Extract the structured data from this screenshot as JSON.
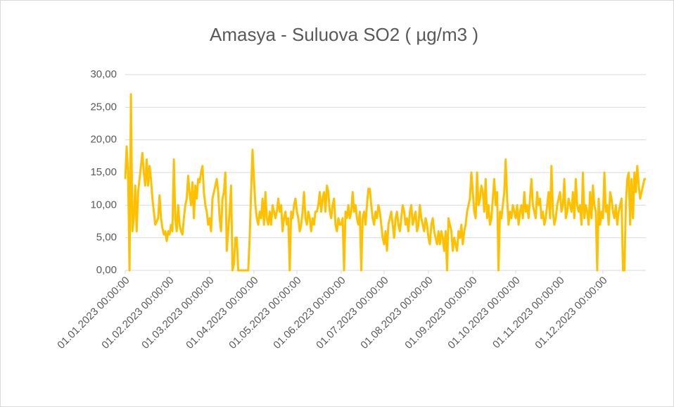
{
  "chart_data": {
    "type": "line",
    "title": "Amasya - Suluova SO2 ( µg/m3 )",
    "categories": [
      "01.01.2023 00:00:00",
      null,
      null,
      null,
      null,
      null,
      null,
      null,
      null,
      null,
      null,
      null,
      null,
      null,
      null,
      null,
      null,
      null,
      null,
      null,
      null,
      null,
      null,
      null,
      null,
      null,
      null,
      null,
      null,
      null,
      null,
      "01.02.2023 00:00:00",
      null,
      null,
      null,
      null,
      null,
      null,
      null,
      null,
      null,
      null,
      null,
      null,
      null,
      null,
      null,
      null,
      null,
      null,
      null,
      null,
      null,
      null,
      null,
      null,
      null,
      null,
      null,
      "01.03.2023 00:00:00",
      null,
      null,
      null,
      null,
      null,
      null,
      null,
      null,
      null,
      null,
      null,
      null,
      null,
      null,
      null,
      null,
      null,
      null,
      null,
      null,
      null,
      null,
      null,
      null,
      null,
      null,
      null,
      null,
      null,
      null,
      "01.04.2023 00:00:00",
      null,
      null,
      null,
      null,
      null,
      null,
      null,
      null,
      null,
      null,
      null,
      null,
      null,
      null,
      null,
      null,
      null,
      null,
      null,
      null,
      null,
      null,
      null,
      null,
      null,
      null,
      null,
      null,
      null,
      "01.05.2023 00:00:00",
      null,
      null,
      null,
      null,
      null,
      null,
      null,
      null,
      null,
      null,
      null,
      null,
      null,
      null,
      null,
      null,
      null,
      null,
      null,
      null,
      null,
      null,
      null,
      null,
      null,
      null,
      null,
      null,
      null,
      null,
      "01.06.2023 00:00:00",
      null,
      null,
      null,
      null,
      null,
      null,
      null,
      null,
      null,
      null,
      null,
      null,
      null,
      null,
      null,
      null,
      null,
      null,
      null,
      null,
      null,
      null,
      null,
      null,
      null,
      null,
      null,
      null,
      null,
      "01.07.2023 00:00:00",
      null,
      null,
      null,
      null,
      null,
      null,
      null,
      null,
      null,
      null,
      null,
      null,
      null,
      null,
      null,
      null,
      null,
      null,
      null,
      null,
      null,
      null,
      null,
      null,
      null,
      null,
      null,
      null,
      null,
      null,
      "01.08.2023 00:00:00",
      null,
      null,
      null,
      null,
      null,
      null,
      null,
      null,
      null,
      null,
      null,
      null,
      null,
      null,
      null,
      null,
      null,
      null,
      null,
      null,
      null,
      null,
      null,
      null,
      null,
      null,
      null,
      null,
      null,
      null,
      "01.09.2023 00:00:00",
      null,
      null,
      null,
      null,
      null,
      null,
      null,
      null,
      null,
      null,
      null,
      null,
      null,
      null,
      null,
      null,
      null,
      null,
      null,
      null,
      null,
      null,
      null,
      null,
      null,
      null,
      null,
      null,
      null,
      "01.10.2023 00:00:00",
      null,
      null,
      null,
      null,
      null,
      null,
      null,
      null,
      null,
      null,
      null,
      null,
      null,
      null,
      null,
      null,
      null,
      null,
      null,
      null,
      null,
      null,
      null,
      null,
      null,
      null,
      null,
      null,
      null,
      null,
      "01.11.2023 00:00:00",
      null,
      null,
      null,
      null,
      null,
      null,
      null,
      null,
      null,
      null,
      null,
      null,
      null,
      null,
      null,
      null,
      null,
      null,
      null,
      null,
      null,
      null,
      null,
      null,
      null,
      null,
      null,
      null,
      null,
      "01.12.2023 00:00:00",
      null,
      null,
      null,
      null,
      null,
      null,
      null,
      null,
      null,
      null,
      null,
      null,
      null,
      null,
      null,
      null,
      null,
      null,
      null,
      null,
      null,
      null,
      null,
      null,
      null,
      null,
      null,
      null,
      null,
      null
    ],
    "values": [
      14,
      19,
      15,
      0,
      27,
      6,
      8,
      13,
      6,
      12,
      14,
      16,
      18,
      15,
      13,
      17,
      13,
      16,
      14,
      11,
      9,
      7,
      7.5,
      8,
      11.5,
      8,
      6.5,
      5.5,
      6,
      4.5,
      6,
      5.5,
      7,
      6,
      17,
      8,
      6,
      10,
      7,
      6,
      5.5,
      8,
      10,
      11,
      14.5,
      12,
      10,
      13.5,
      8,
      13,
      11,
      14,
      13.5,
      15,
      16,
      12,
      10,
      9,
      7,
      8,
      6,
      11,
      12,
      13,
      14,
      12,
      8,
      6,
      11,
      12,
      15,
      3,
      6,
      9,
      13,
      0,
      1,
      5,
      5,
      0,
      0,
      0,
      0,
      0,
      0,
      0,
      0,
      5,
      12,
      18.5,
      14,
      10,
      8,
      7,
      9,
      8,
      11,
      7,
      12,
      8,
      7,
      9,
      7,
      10,
      9,
      8,
      9,
      11,
      9,
      10,
      6,
      8,
      9,
      7,
      8,
      0,
      9,
      8,
      10,
      11,
      9,
      8,
      6,
      7,
      9,
      12,
      8,
      7,
      9,
      8,
      6,
      8,
      7,
      9,
      9,
      10,
      12,
      9,
      11,
      12,
      9,
      13,
      12,
      9,
      8,
      10,
      11,
      7,
      6,
      8,
      7,
      7,
      8,
      0,
      9,
      8,
      10,
      8,
      9,
      12,
      9,
      10,
      8,
      7,
      9,
      0,
      8,
      9,
      7,
      10,
      12.5,
      12.5,
      10,
      8,
      7,
      9,
      8,
      10,
      9,
      7,
      5,
      4,
      6,
      3,
      7,
      8,
      9,
      7,
      5,
      8,
      9,
      7,
      6,
      8,
      10,
      9,
      7,
      8,
      6,
      9,
      10,
      7,
      8,
      9,
      6,
      7,
      10,
      8,
      7,
      6,
      8,
      7,
      5,
      4,
      7,
      8,
      6,
      5,
      4,
      6,
      4,
      6,
      5,
      3,
      6,
      0,
      8,
      7,
      6,
      3,
      5,
      4,
      3,
      6,
      5,
      7,
      4,
      6,
      7,
      9,
      10,
      11,
      15,
      12,
      9,
      8,
      15,
      10,
      11,
      13,
      12,
      9,
      14,
      8,
      10,
      7,
      8,
      11,
      14,
      10,
      12,
      0,
      9,
      8,
      10,
      12,
      17,
      11,
      7,
      9,
      8,
      10,
      9,
      8,
      10,
      7,
      9,
      10,
      8,
      12,
      9,
      10,
      8,
      11,
      14,
      10,
      9,
      8,
      12,
      10,
      11,
      8,
      9,
      7,
      8,
      10,
      12,
      8,
      16,
      9,
      7,
      8,
      10,
      11,
      12,
      9,
      10,
      14,
      8,
      9,
      11,
      10,
      9,
      12,
      8,
      14,
      10,
      9,
      10,
      7,
      15,
      8,
      10,
      9,
      7,
      12,
      8,
      13,
      10,
      9,
      0,
      11,
      7,
      9,
      8,
      15,
      9,
      10,
      7,
      12,
      11,
      9,
      8,
      10,
      7,
      9,
      10,
      11,
      0,
      0,
      10,
      14,
      15,
      7,
      14,
      8,
      15,
      12,
      16,
      13,
      11,
      12,
      13,
      14,
      14
    ],
    "color": "#ffc000",
    "ylim": [
      0,
      30
    ],
    "yticks": [
      {
        "value": 0,
        "label": "0,00"
      },
      {
        "value": 5,
        "label": "5,00"
      },
      {
        "value": 10,
        "label": "10,00"
      },
      {
        "value": 15,
        "label": "15,00"
      },
      {
        "value": 20,
        "label": "20,00"
      },
      {
        "value": 25,
        "label": "25,00"
      },
      {
        "value": 30,
        "label": "30,00"
      }
    ],
    "grid": true
  }
}
